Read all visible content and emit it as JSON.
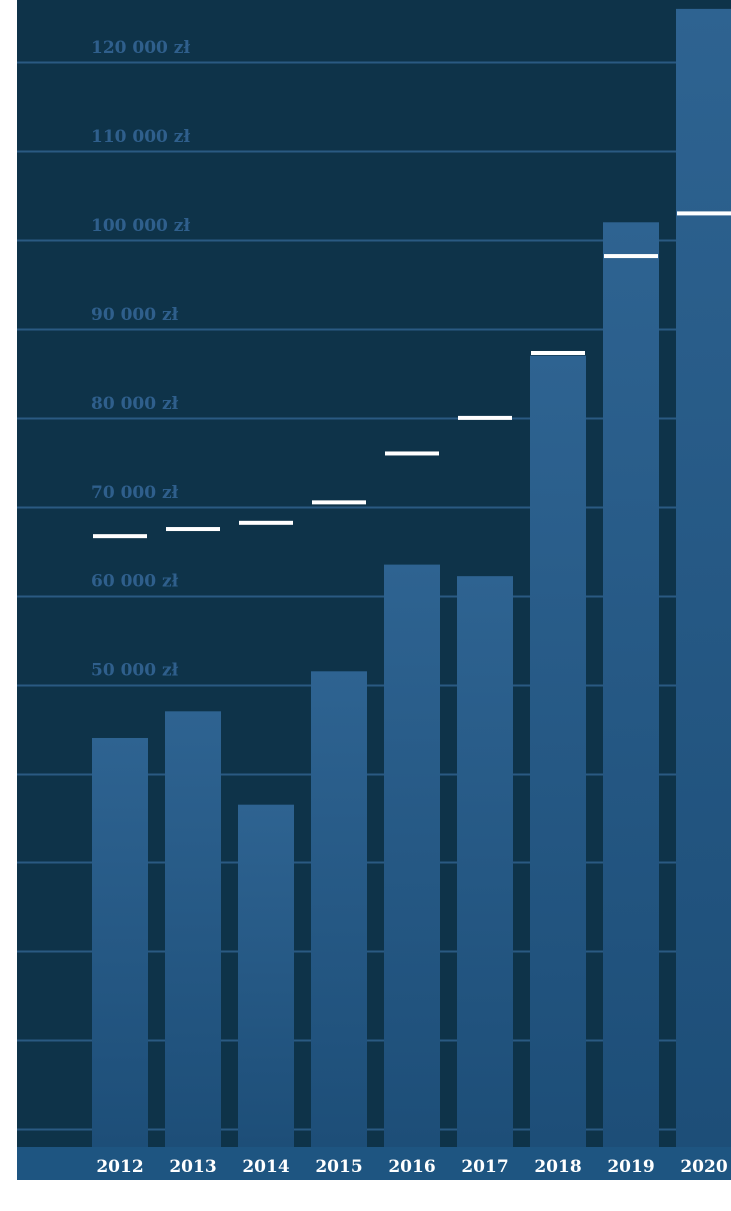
{
  "chart_data": {
    "type": "bar",
    "title": "",
    "xlabel": "",
    "ylabel": "",
    "categories": [
      "2012",
      "2013",
      "2014",
      "2015",
      "2016",
      "2017",
      "2018",
      "2019",
      "2020"
    ],
    "series": [
      {
        "name": "",
        "type": "bar",
        "values": [
          44000,
          47000,
          36500,
          51500,
          63500,
          62200,
          87000,
          102000,
          126000
        ]
      },
      {
        "name": "",
        "type": "marker",
        "values": [
          66700,
          67500,
          68200,
          70500,
          76000,
          80000,
          87300,
          98200,
          103000
        ]
      }
    ],
    "y_ticks": [
      {
        "value": 50000,
        "label": "50 000 zł"
      },
      {
        "value": 60000,
        "label": "60 000 zł"
      },
      {
        "value": 70000,
        "label": "70 000 zł"
      },
      {
        "value": 80000,
        "label": "80 000 zł"
      },
      {
        "value": 90000,
        "label": "90 000 zł"
      },
      {
        "value": 100000,
        "label": "100 000 zł"
      },
      {
        "value": 110000,
        "label": "110 000 zł"
      },
      {
        "value": 120000,
        "label": "120 000 zł"
      }
    ],
    "gridlines": [
      0,
      10000,
      20000,
      30000,
      40000,
      50000,
      60000,
      70000,
      80000,
      90000,
      100000,
      110000,
      120000
    ],
    "ylim": [
      -2000,
      127000
    ],
    "grid": true,
    "legend": "none",
    "colors": {
      "background": "#0e3349",
      "bar_top": "#2e6391",
      "bar_bottom": "#1d4e78",
      "marker": "#ffffff",
      "gridline": "#2a5a82",
      "tick_label": "#2f5f8c",
      "axis_strip": "#1e5581",
      "category_label": "#ffffff"
    }
  }
}
